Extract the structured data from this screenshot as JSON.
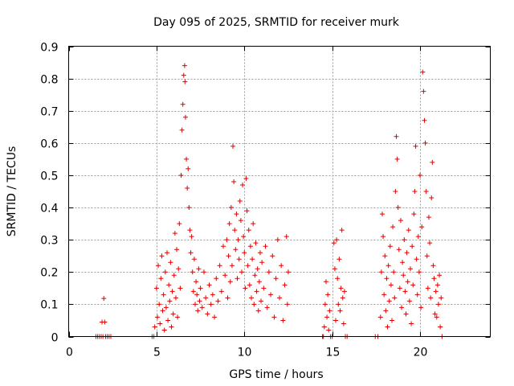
{
  "chart_data": {
    "type": "scatter",
    "title": "Day 095 of 2025, SRMTID for receiver murk",
    "xlabel": "GPS time / hours",
    "ylabel": "SRMTID / TECUs",
    "xlim": [
      0,
      24
    ],
    "ylim": [
      0,
      0.9
    ],
    "xticks": [
      0,
      5,
      10,
      15,
      20
    ],
    "xtick_labels": [
      "0",
      "5",
      "10",
      "15",
      "20"
    ],
    "yticks": [
      0,
      0.1,
      0.2,
      0.3,
      0.4,
      0.5,
      0.6,
      0.7,
      0.8,
      0.9
    ],
    "ytick_labels": [
      "0",
      "0.1",
      "0.2",
      "0.3",
      "0.4",
      "0.5",
      "0.6",
      "0.7",
      "0.8",
      "0.9"
    ],
    "grid": true,
    "legend": "none",
    "marker": "plus",
    "color": "#e00000",
    "series": [
      {
        "name": "SRMTID",
        "points": [
          [
            1.55,
            0
          ],
          [
            1.65,
            0
          ],
          [
            1.75,
            0
          ],
          [
            1.85,
            0
          ],
          [
            1.9,
            0.045
          ],
          [
            1.95,
            0
          ],
          [
            2.0,
            0.118
          ],
          [
            2.05,
            0.045
          ],
          [
            2.1,
            0
          ],
          [
            2.2,
            0
          ],
          [
            2.3,
            0
          ],
          [
            2.4,
            0
          ],
          [
            4.75,
            0
          ],
          [
            4.85,
            0
          ],
          [
            4.9,
            0.03
          ],
          [
            5.0,
            0.15
          ],
          [
            5.05,
            0.06
          ],
          [
            5.1,
            0.22
          ],
          [
            5.15,
            0.1
          ],
          [
            5.2,
            0.04
          ],
          [
            5.25,
            0.18
          ],
          [
            5.3,
            0.25
          ],
          [
            5.35,
            0.08
          ],
          [
            5.4,
            0.13
          ],
          [
            5.45,
            0.02
          ],
          [
            5.5,
            0.2
          ],
          [
            5.55,
            0.09
          ],
          [
            5.6,
            0.26
          ],
          [
            5.65,
            0.05
          ],
          [
            5.7,
            0.16
          ],
          [
            5.75,
            0.11
          ],
          [
            5.8,
            0.23
          ],
          [
            5.85,
            0.03
          ],
          [
            5.9,
            0.14
          ],
          [
            5.95,
            0.07
          ],
          [
            6.0,
            0.19
          ],
          [
            6.05,
            0.32
          ],
          [
            6.1,
            0.12
          ],
          [
            6.15,
            0.27
          ],
          [
            6.2,
            0.06
          ],
          [
            6.25,
            0.21
          ],
          [
            6.3,
            0.35
          ],
          [
            6.35,
            0.15
          ],
          [
            6.4,
            0.5
          ],
          [
            6.45,
            0.64
          ],
          [
            6.5,
            0.72
          ],
          [
            6.55,
            0.81
          ],
          [
            6.6,
            0.84
          ],
          [
            6.62,
            0.79
          ],
          [
            6.65,
            0.68
          ],
          [
            6.7,
            0.55
          ],
          [
            6.75,
            0.46
          ],
          [
            6.8,
            0.52
          ],
          [
            6.85,
            0.4
          ],
          [
            6.9,
            0.33
          ],
          [
            6.95,
            0.26
          ],
          [
            7.0,
            0.31
          ],
          [
            7.05,
            0.2
          ],
          [
            7.1,
            0.14
          ],
          [
            7.15,
            0.24
          ],
          [
            7.2,
            0.1
          ],
          [
            7.25,
            0.17
          ],
          [
            7.3,
            0.13
          ],
          [
            7.35,
            0.08
          ],
          [
            7.4,
            0.21
          ],
          [
            7.45,
            0.11
          ],
          [
            7.5,
            0.15
          ],
          [
            7.6,
            0.09
          ],
          [
            7.7,
            0.2
          ],
          [
            7.8,
            0.12
          ],
          [
            7.9,
            0.07
          ],
          [
            8.0,
            0.16
          ],
          [
            8.1,
            0.1
          ],
          [
            8.2,
            0.13
          ],
          [
            8.3,
            0.06
          ],
          [
            8.4,
            0.18
          ],
          [
            8.5,
            0.11
          ],
          [
            8.6,
            0.22
          ],
          [
            8.7,
            0.14
          ],
          [
            8.8,
            0.28
          ],
          [
            8.9,
            0.19
          ],
          [
            9.0,
            0.3
          ],
          [
            9.05,
            0.12
          ],
          [
            9.1,
            0.25
          ],
          [
            9.15,
            0.35
          ],
          [
            9.2,
            0.17
          ],
          [
            9.25,
            0.4
          ],
          [
            9.3,
            0.22
          ],
          [
            9.35,
            0.59
          ],
          [
            9.4,
            0.48
          ],
          [
            9.45,
            0.33
          ],
          [
            9.5,
            0.27
          ],
          [
            9.55,
            0.38
          ],
          [
            9.6,
            0.18
          ],
          [
            9.65,
            0.3
          ],
          [
            9.7,
            0.24
          ],
          [
            9.75,
            0.42
          ],
          [
            9.8,
            0.36
          ],
          [
            9.85,
            0.2
          ],
          [
            9.9,
            0.47
          ],
          [
            9.95,
            0.31
          ],
          [
            10.0,
            0.26
          ],
          [
            10.05,
            0.15
          ],
          [
            10.1,
            0.49
          ],
          [
            10.15,
            0.39
          ],
          [
            10.2,
            0.22
          ],
          [
            10.25,
            0.33
          ],
          [
            10.3,
            0.16
          ],
          [
            10.35,
            0.28
          ],
          [
            10.4,
            0.12
          ],
          [
            10.45,
            0.24
          ],
          [
            10.5,
            0.35
          ],
          [
            10.55,
            0.1
          ],
          [
            10.6,
            0.19
          ],
          [
            10.65,
            0.29
          ],
          [
            10.7,
            0.14
          ],
          [
            10.75,
            0.21
          ],
          [
            10.8,
            0.08
          ],
          [
            10.85,
            0.17
          ],
          [
            10.9,
            0.26
          ],
          [
            10.95,
            0.11
          ],
          [
            11.0,
            0.23
          ],
          [
            11.1,
            0.15
          ],
          [
            11.2,
            0.28
          ],
          [
            11.3,
            0.09
          ],
          [
            11.4,
            0.2
          ],
          [
            11.5,
            0.13
          ],
          [
            11.6,
            0.25
          ],
          [
            11.7,
            0.06
          ],
          [
            11.8,
            0.18
          ],
          [
            11.9,
            0.3
          ],
          [
            12.0,
            0.12
          ],
          [
            12.1,
            0.22
          ],
          [
            12.2,
            0.05
          ],
          [
            12.3,
            0.16
          ],
          [
            12.4,
            0.31
          ],
          [
            12.45,
            0.1
          ],
          [
            12.5,
            0.2
          ],
          [
            14.45,
            0
          ],
          [
            14.5,
            0
          ],
          [
            14.55,
            0.03
          ],
          [
            14.6,
            0.1
          ],
          [
            14.65,
            0.17
          ],
          [
            14.7,
            0.06
          ],
          [
            14.75,
            0.13
          ],
          [
            14.8,
            0.02
          ],
          [
            14.85,
            0.08
          ],
          [
            14.9,
            0
          ],
          [
            15.0,
            0
          ],
          [
            15.1,
            0.29
          ],
          [
            15.15,
            0.21
          ],
          [
            15.2,
            0.05
          ],
          [
            15.25,
            0.3
          ],
          [
            15.3,
            0.18
          ],
          [
            15.35,
            0.1
          ],
          [
            15.4,
            0.24
          ],
          [
            15.45,
            0.08
          ],
          [
            15.5,
            0.15
          ],
          [
            15.55,
            0.33
          ],
          [
            15.6,
            0.12
          ],
          [
            15.65,
            0.04
          ],
          [
            15.7,
            0.14
          ],
          [
            15.75,
            0.0
          ],
          [
            15.85,
            0
          ],
          [
            17.45,
            0
          ],
          [
            17.6,
            0
          ],
          [
            17.75,
            0.06
          ],
          [
            17.8,
            0.2
          ],
          [
            17.85,
            0.38
          ],
          [
            17.9,
            0.31
          ],
          [
            17.95,
            0.13
          ],
          [
            18.0,
            0.25
          ],
          [
            18.05,
            0.08
          ],
          [
            18.1,
            0.18
          ],
          [
            18.15,
            0.03
          ],
          [
            18.2,
            0.22
          ],
          [
            18.25,
            0.11
          ],
          [
            18.3,
            0.28
          ],
          [
            18.35,
            0.16
          ],
          [
            18.4,
            0.05
          ],
          [
            18.45,
            0.34
          ],
          [
            18.5,
            0.2
          ],
          [
            18.55,
            0.12
          ],
          [
            18.6,
            0.45
          ],
          [
            18.65,
            0.62
          ],
          [
            18.7,
            0.55
          ],
          [
            18.75,
            0.4
          ],
          [
            18.8,
            0.27
          ],
          [
            18.85,
            0.15
          ],
          [
            18.9,
            0.36
          ],
          [
            18.95,
            0.09
          ],
          [
            19.0,
            0.23
          ],
          [
            19.05,
            0.19
          ],
          [
            19.1,
            0.3
          ],
          [
            19.15,
            0.14
          ],
          [
            19.2,
            0.07
          ],
          [
            19.25,
            0.26
          ],
          [
            19.3,
            0.17
          ],
          [
            19.35,
            0.33
          ],
          [
            19.4,
            0.11
          ],
          [
            19.45,
            0.21
          ],
          [
            19.5,
            0.04
          ],
          [
            19.55,
            0.28
          ],
          [
            19.6,
            0.16
          ],
          [
            19.65,
            0.38
          ],
          [
            19.7,
            0.45
          ],
          [
            19.75,
            0.59
          ],
          [
            19.8,
            0.24
          ],
          [
            19.85,
            0.13
          ],
          [
            19.9,
            0.31
          ],
          [
            19.95,
            0.2
          ],
          [
            20.0,
            0.5
          ],
          [
            20.05,
            0.09
          ],
          [
            20.1,
            0.34
          ],
          [
            20.15,
            0.82
          ],
          [
            20.2,
            0.76
          ],
          [
            20.25,
            0.67
          ],
          [
            20.3,
            0.6
          ],
          [
            20.35,
            0.45
          ],
          [
            20.4,
            0.25
          ],
          [
            20.45,
            0.15
          ],
          [
            20.5,
            0.37
          ],
          [
            20.55,
            0.29
          ],
          [
            20.6,
            0.12
          ],
          [
            20.65,
            0.43
          ],
          [
            20.7,
            0.54
          ],
          [
            20.75,
            0.22
          ],
          [
            20.8,
            0.18
          ],
          [
            20.85,
            0.07
          ],
          [
            20.9,
            0.14
          ],
          [
            20.95,
            0.06
          ],
          [
            21.0,
            0.16
          ],
          [
            21.05,
            0.1
          ],
          [
            21.1,
            0.19
          ],
          [
            21.15,
            0.03
          ],
          [
            21.2,
            0.12
          ],
          [
            21.25,
            0
          ]
        ]
      }
    ]
  }
}
